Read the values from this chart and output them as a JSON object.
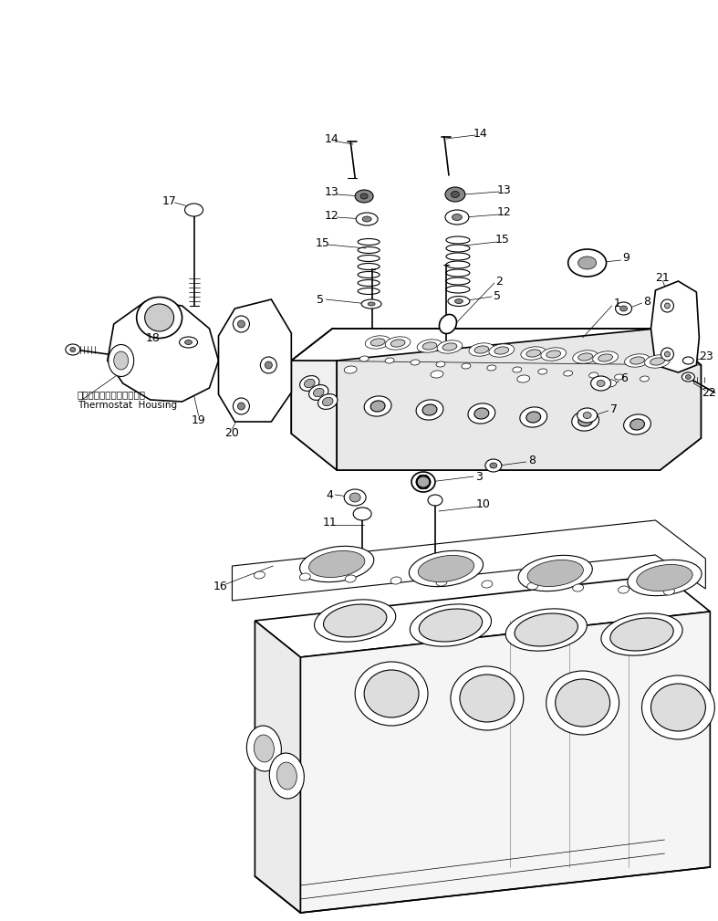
{
  "background_color": "#ffffff",
  "figure_width": 7.87,
  "figure_height": 10.09,
  "dpi": 100,
  "line_color": "#000000",
  "text_color": "#000000",
  "font_size_labels": 9,
  "font_size_thermostat": 7.5,
  "thermostat_label_jp": "サーモスタットハウジング",
  "thermostat_label_en": "Thermostat  Housing"
}
